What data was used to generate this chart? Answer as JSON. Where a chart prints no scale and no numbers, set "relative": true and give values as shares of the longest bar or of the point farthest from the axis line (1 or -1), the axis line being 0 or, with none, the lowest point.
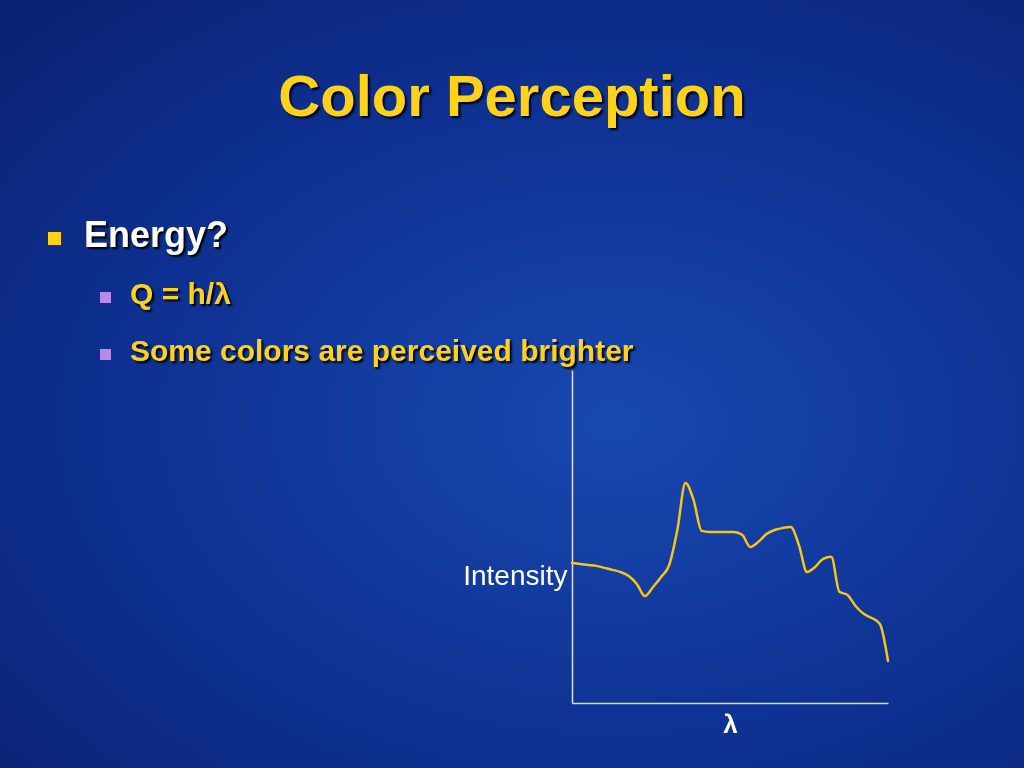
{
  "chart_data": {
    "type": "line",
    "title": "Color Perception",
    "annotations": [
      "Energy?",
      "Q = h/λ",
      "Some colors are perceived brighter"
    ],
    "xlabel": "λ",
    "ylabel": "Intensity",
    "relative": true,
    "categories": [
      null,
      null,
      null,
      null,
      null,
      null,
      null,
      null,
      null,
      null,
      null,
      null,
      null,
      null,
      null,
      null,
      null,
      null,
      null,
      null,
      null,
      null,
      null,
      null,
      null,
      null,
      null,
      null,
      null,
      null,
      null,
      null,
      null,
      null,
      null,
      null,
      null,
      null,
      null,
      null
    ],
    "series": [
      {
        "color": "#f5c518",
        "values": [
          0.636,
          0.632,
          0.627,
          0.623,
          0.614,
          0.605,
          0.595,
          0.577,
          0.541,
          0.486,
          0.527,
          0.573,
          0.627,
          0.786,
          1,
          0.923,
          0.782,
          0.777,
          0.777,
          0.777,
          0.777,
          0.764,
          0.709,
          0.732,
          0.768,
          0.786,
          0.795,
          0.8,
          0.718,
          0.595,
          0.618,
          0.655,
          0.664,
          0.505,
          0.491,
          0.441,
          0.405,
          0.386,
          0.359,
          0.191
        ]
      }
    ]
  }
}
